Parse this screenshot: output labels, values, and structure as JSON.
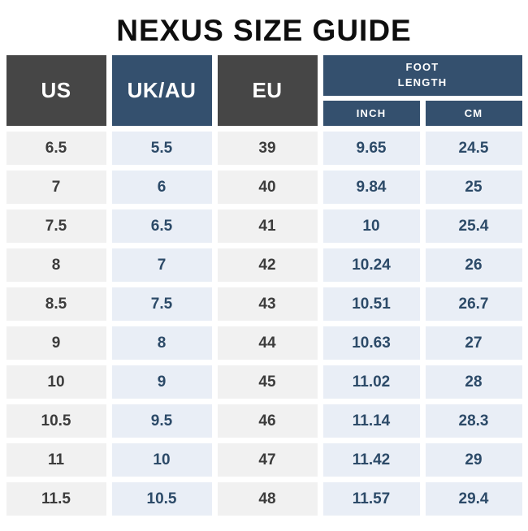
{
  "title": "NEXUS SIZE GUIDE",
  "headers": {
    "us": "US",
    "uk_au": "UK/AU",
    "eu": "EU",
    "foot_length": "FOOT\nLENGTH",
    "inch": "INCH",
    "cm": "CM"
  },
  "rows": [
    {
      "us": "6.5",
      "uk_au": "5.5",
      "eu": "39",
      "inch": "9.65",
      "cm": "24.5"
    },
    {
      "us": "7",
      "uk_au": "6",
      "eu": "40",
      "inch": "9.84",
      "cm": "25"
    },
    {
      "us": "7.5",
      "uk_au": "6.5",
      "eu": "41",
      "inch": "10",
      "cm": "25.4"
    },
    {
      "us": "8",
      "uk_au": "7",
      "eu": "42",
      "inch": "10.24",
      "cm": "26"
    },
    {
      "us": "8.5",
      "uk_au": "7.5",
      "eu": "43",
      "inch": "10.51",
      "cm": "26.7"
    },
    {
      "us": "9",
      "uk_au": "8",
      "eu": "44",
      "inch": "10.63",
      "cm": "27"
    },
    {
      "us": "10",
      "uk_au": "9",
      "eu": "45",
      "inch": "11.02",
      "cm": "28"
    },
    {
      "us": "10.5",
      "uk_au": "9.5",
      "eu": "46",
      "inch": "11.14",
      "cm": "28.3"
    },
    {
      "us": "11",
      "uk_au": "10",
      "eu": "47",
      "inch": "11.42",
      "cm": "29"
    },
    {
      "us": "11.5",
      "uk_au": "10.5",
      "eu": "48",
      "inch": "11.57",
      "cm": "29.4"
    }
  ],
  "colors": {
    "header_charcoal": "#464646",
    "header_navy": "#34506e",
    "cell_gray_bg": "#f1f1f1",
    "cell_blue_bg": "#e9eef6",
    "cell_gray_text": "#3c3c3c",
    "cell_blue_text": "#2c4a68",
    "title_text": "#0e0e0e",
    "background": "#ffffff"
  },
  "chart_data": {
    "type": "table",
    "title": "NEXUS SIZE GUIDE",
    "columns": [
      "US",
      "UK/AU",
      "EU",
      "FOOT LENGTH INCH",
      "FOOT LENGTH CM"
    ],
    "rows": [
      [
        "6.5",
        "5.5",
        "39",
        "9.65",
        "24.5"
      ],
      [
        "7",
        "6",
        "40",
        "9.84",
        "25"
      ],
      [
        "7.5",
        "6.5",
        "41",
        "10",
        "25.4"
      ],
      [
        "8",
        "7",
        "42",
        "10.24",
        "26"
      ],
      [
        "8.5",
        "7.5",
        "43",
        "10.51",
        "26.7"
      ],
      [
        "9",
        "8",
        "44",
        "10.63",
        "27"
      ],
      [
        "10",
        "9",
        "45",
        "11.02",
        "28"
      ],
      [
        "10.5",
        "9.5",
        "46",
        "11.14",
        "28.3"
      ],
      [
        "11",
        "10",
        "47",
        "11.42",
        "29"
      ],
      [
        "11.5",
        "10.5",
        "48",
        "11.57",
        "29.4"
      ]
    ]
  }
}
